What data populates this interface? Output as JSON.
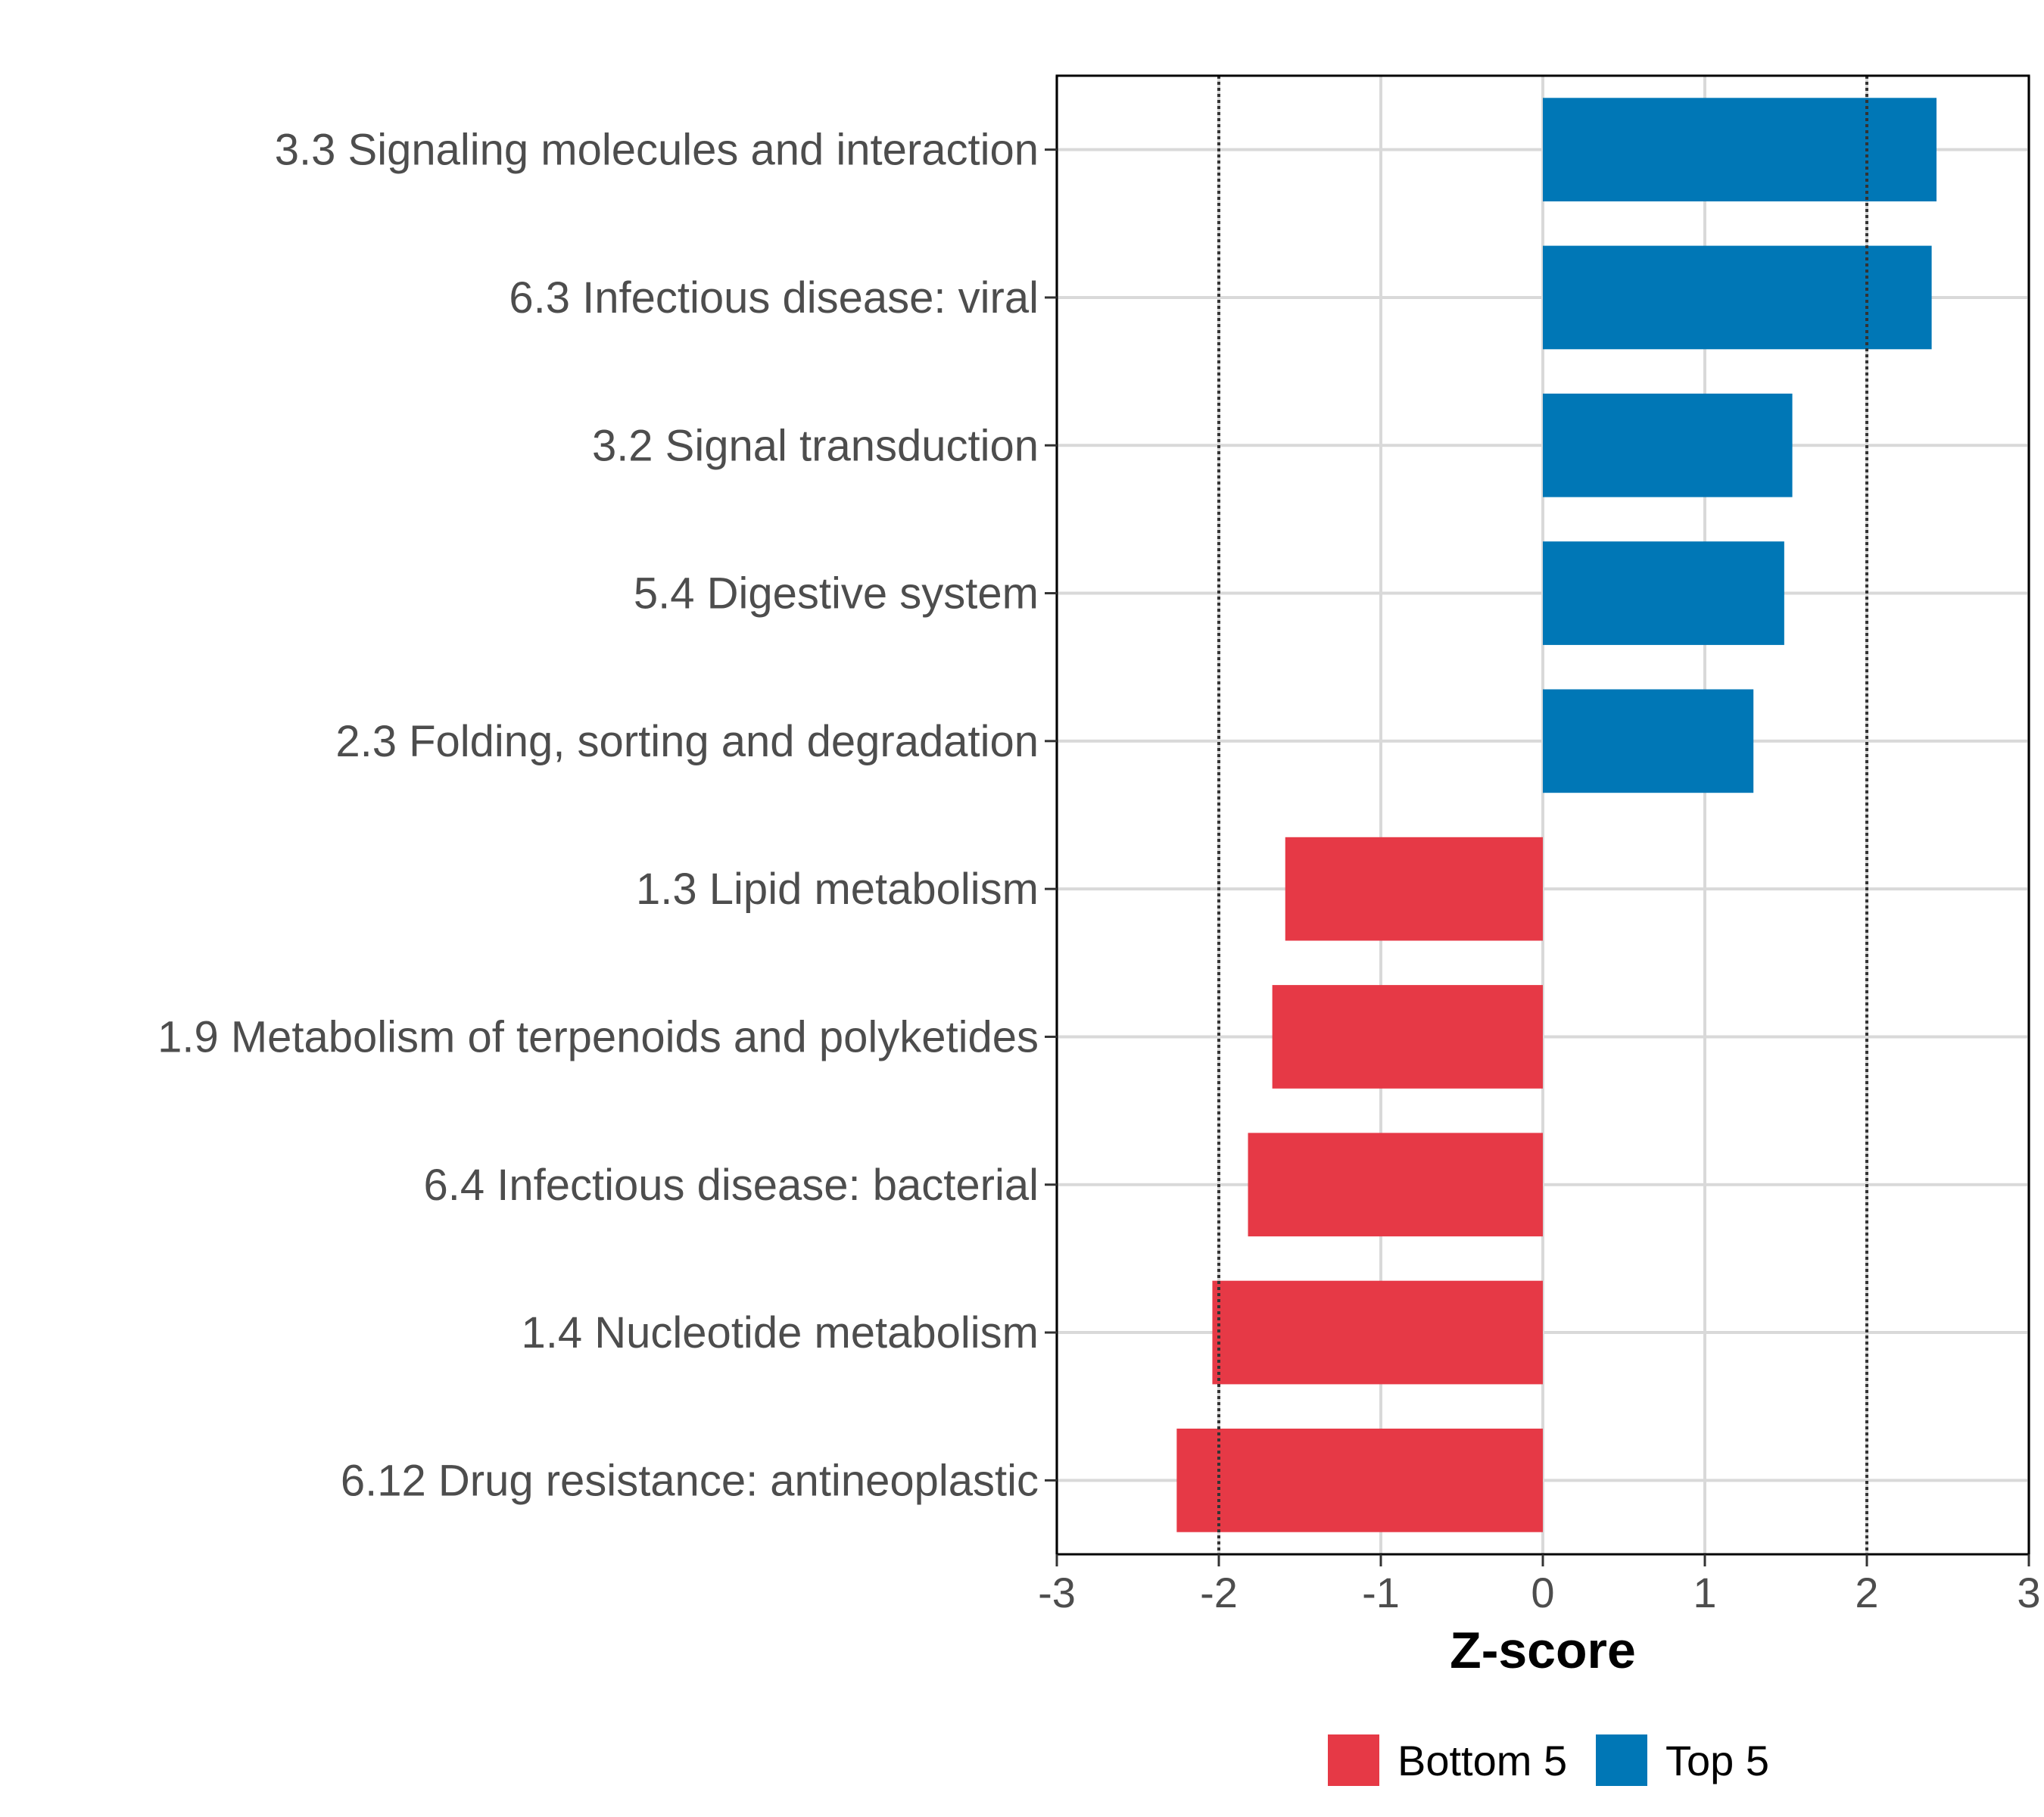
{
  "chart_data": {
    "type": "bar",
    "orientation": "horizontal",
    "title": "",
    "xlabel": "Z-score",
    "ylabel": "",
    "xlim": [
      -3,
      3
    ],
    "xticks": [
      "-3",
      "-2",
      "-1",
      "0",
      "1",
      "2",
      "3"
    ],
    "reference_lines": [
      -2,
      2
    ],
    "grid": true,
    "legend_position": "bottom",
    "categories": [
      "3.3 Signaling molecules and interaction",
      "6.3 Infectious disease: viral",
      "3.2 Signal transduction",
      "5.4 Digestive system",
      "2.3 Folding, sorting and degradation",
      "1.3 Lipid metabolism",
      "1.9 Metabolism of terpenoids and polyketides",
      "6.4 Infectious disease: bacterial",
      "1.4 Nucleotide metabolism",
      "6.12 Drug resistance: antineoplastic"
    ],
    "values": [
      2.43,
      2.4,
      1.54,
      1.49,
      1.3,
      -1.59,
      -1.67,
      -1.82,
      -2.04,
      -2.26
    ],
    "groups": [
      "Top 5",
      "Top 5",
      "Top 5",
      "Top 5",
      "Top 5",
      "Bottom 5",
      "Bottom 5",
      "Bottom 5",
      "Bottom 5",
      "Bottom 5"
    ],
    "legend": [
      {
        "name": "Bottom 5",
        "color": "#e63946"
      },
      {
        "name": "Top 5",
        "color": "#0077b6"
      }
    ]
  }
}
